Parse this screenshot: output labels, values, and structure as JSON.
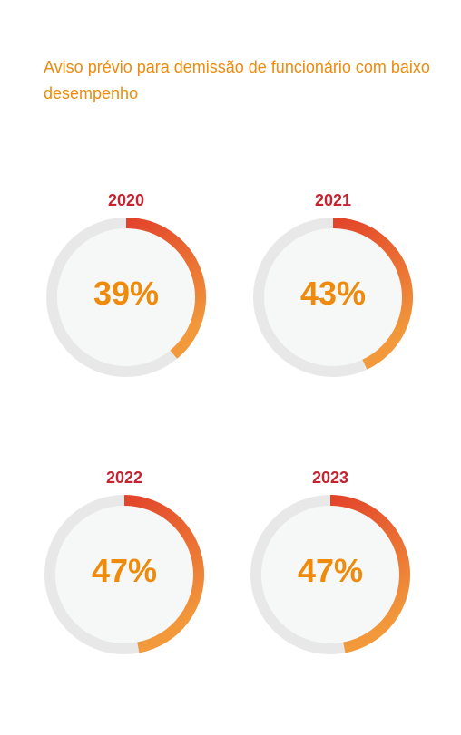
{
  "title": "Aviso prévio para demissão de funcionário com baixo desempenho",
  "colors": {
    "title": "#ee8a0c",
    "year": "#c4232f",
    "value": "#ee8a0c",
    "track": "#e8e8e8",
    "inner": "#f6f7f7",
    "arc_start": "#e2442b",
    "arc_end": "#f29a3b"
  },
  "chart_data": {
    "type": "pie",
    "title": "Aviso prévio para demissão de funcionário com baixo desempenho",
    "categories": [
      "2020",
      "2021",
      "2022",
      "2023"
    ],
    "values": [
      39,
      43,
      47,
      47
    ],
    "labels": [
      "39%",
      "43%",
      "47%",
      "47%"
    ],
    "unit": "%"
  }
}
